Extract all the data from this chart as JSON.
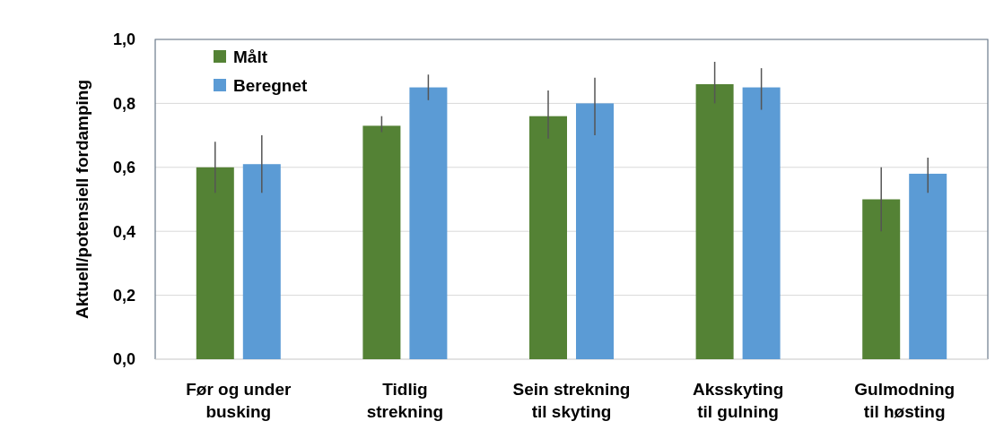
{
  "chart_data": {
    "type": "bar",
    "ylabel": "Aktuell/potensiell fordamping",
    "categories": [
      "Før og under\nbusking",
      "Tidlig\nstrekning",
      "Sein strekning\ntil skyting",
      "Aksskyting\ntil gulning",
      "Gulmodning\ntil høsting"
    ],
    "series": [
      {
        "name": "Målt",
        "color": "#548235",
        "values": [
          0.6,
          0.73,
          0.76,
          0.86,
          0.5
        ],
        "errors": [
          [
            0.52,
            0.68
          ],
          [
            0.71,
            0.76
          ],
          [
            0.69,
            0.84
          ],
          [
            0.8,
            0.93
          ],
          [
            0.4,
            0.6
          ]
        ]
      },
      {
        "name": "Beregnet",
        "color": "#5b9bd5",
        "values": [
          0.61,
          0.85,
          0.8,
          0.85,
          0.58
        ],
        "errors": [
          [
            0.52,
            0.7
          ],
          [
            0.81,
            0.89
          ],
          [
            0.7,
            0.88
          ],
          [
            0.78,
            0.91
          ],
          [
            0.52,
            0.63
          ]
        ]
      }
    ],
    "ylim": [
      0,
      1
    ],
    "yticks": [
      {
        "value": 0,
        "label": "0,0"
      },
      {
        "value": 0.2,
        "label": "0,2"
      },
      {
        "value": 0.4,
        "label": "0,4"
      },
      {
        "value": 0.6,
        "label": "0,6"
      },
      {
        "value": 0.8,
        "label": "0,8"
      },
      {
        "value": 1,
        "label": "1,0"
      }
    ],
    "grid": "y",
    "legend": "top left"
  }
}
